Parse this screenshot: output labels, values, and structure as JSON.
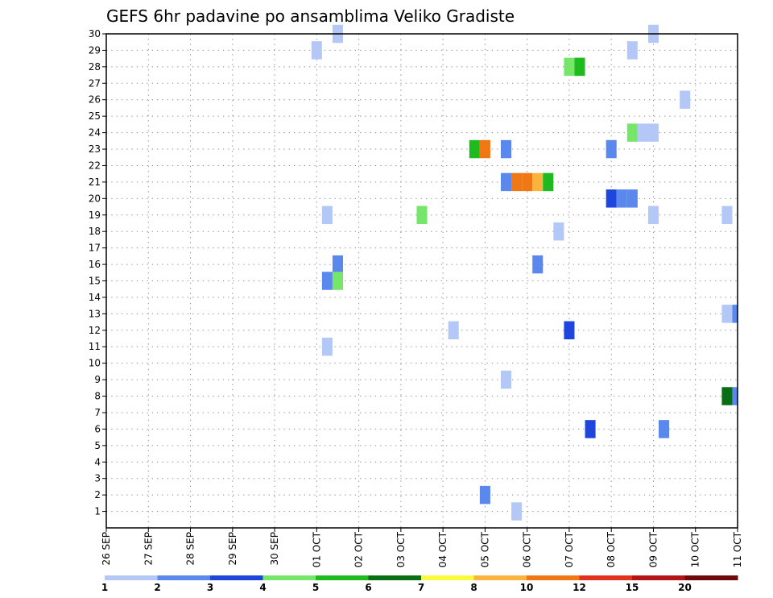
{
  "chart_data": {
    "type": "heatmap",
    "title": "GEFS 6hr padavine po ansamblima Veliko Gradiste",
    "x_tick_labels": [
      "26 SEP",
      "27 SEP",
      "28 SEP",
      "29 SEP",
      "30 SEP",
      "01 OCT",
      "02 OCT",
      "03 OCT",
      "04 OCT",
      "05 OCT",
      "06 OCT",
      "07 OCT",
      "08 OCT",
      "09 OCT",
      "10 OCT",
      "11 OCT"
    ],
    "y_tick_labels": [
      "1",
      "2",
      "3",
      "4",
      "5",
      "6",
      "7",
      "8",
      "9",
      "10",
      "11",
      "12",
      "13",
      "14",
      "15",
      "16",
      "17",
      "18",
      "19",
      "20",
      "21",
      "22",
      "23",
      "24",
      "25",
      "26",
      "27",
      "28",
      "29",
      "30"
    ],
    "ylim": [
      0,
      30
    ],
    "grid": true,
    "colorbar": {
      "levels": [
        "1",
        "2",
        "3",
        "4",
        "5",
        "6",
        "7",
        "8",
        "10",
        "12",
        "15",
        "20"
      ],
      "colors": [
        "#b4c8f8",
        "#5a88ec",
        "#1e46dc",
        "#76e66a",
        "#1eba1e",
        "#0a6e14",
        "#fafa3c",
        "#fab43c",
        "#f07814",
        "#e0321e",
        "#b41414",
        "#6e0a0a"
      ]
    },
    "cells": [
      {
        "x": "01 OCT 00Z",
        "member": 29,
        "color": "#b4c8f8"
      },
      {
        "x": "01 OCT 12Z",
        "member": 30,
        "color": "#b4c8f8"
      },
      {
        "x": "08 OCT 12Z",
        "member": 29,
        "color": "#b4c8f8"
      },
      {
        "x": "09 OCT 00Z",
        "member": 30,
        "color": "#b4c8f8"
      },
      {
        "x": "07 OCT 00Z",
        "member": 28,
        "color": "#76e66a"
      },
      {
        "x": "07 OCT 06Z",
        "member": 28,
        "color": "#1eba1e"
      },
      {
        "x": "09 OCT 18Z",
        "member": 26,
        "color": "#b4c8f8"
      },
      {
        "x": "08 OCT 12Z",
        "member": 24,
        "color": "#76e66a"
      },
      {
        "x": "08 OCT 18Z",
        "member": 24,
        "color": "#b4c8f8"
      },
      {
        "x": "09 OCT 00Z",
        "member": 24,
        "color": "#b4c8f8"
      },
      {
        "x": "04 OCT 18Z",
        "member": 23,
        "color": "#1eba1e"
      },
      {
        "x": "05 OCT 00Z",
        "member": 23,
        "color": "#f07814"
      },
      {
        "x": "05 OCT 12Z",
        "member": 23,
        "color": "#5a88ec"
      },
      {
        "x": "08 OCT 00Z",
        "member": 23,
        "color": "#5a88ec"
      },
      {
        "x": "05 OCT 12Z",
        "member": 21,
        "color": "#5a88ec"
      },
      {
        "x": "05 OCT 18Z",
        "member": 21,
        "color": "#f07814"
      },
      {
        "x": "06 OCT 00Z",
        "member": 21,
        "color": "#f07814"
      },
      {
        "x": "06 OCT 06Z",
        "member": 21,
        "color": "#fab43c"
      },
      {
        "x": "06 OCT 12Z",
        "member": 21,
        "color": "#1eba1e"
      },
      {
        "x": "08 OCT 00Z",
        "member": 20,
        "color": "#1e46dc"
      },
      {
        "x": "08 OCT 06Z",
        "member": 20,
        "color": "#5a88ec"
      },
      {
        "x": "08 OCT 12Z",
        "member": 20,
        "color": "#5a88ec"
      },
      {
        "x": "01 OCT 06Z",
        "member": 19,
        "color": "#b4c8f8"
      },
      {
        "x": "03 OCT 12Z",
        "member": 19,
        "color": "#76e66a"
      },
      {
        "x": "09 OCT 00Z",
        "member": 19,
        "color": "#b4c8f8"
      },
      {
        "x": "10 OCT 18Z",
        "member": 19,
        "color": "#b4c8f8"
      },
      {
        "x": "06 OCT 18Z",
        "member": 18,
        "color": "#b4c8f8"
      },
      {
        "x": "01 OCT 12Z",
        "member": 16,
        "color": "#5a88ec"
      },
      {
        "x": "06 OCT 06Z",
        "member": 16,
        "color": "#5a88ec"
      },
      {
        "x": "01 OCT 06Z",
        "member": 15,
        "color": "#5a88ec"
      },
      {
        "x": "01 OCT 12Z",
        "member": 15,
        "color": "#76e66a"
      },
      {
        "x": "10 OCT 18Z",
        "member": 13,
        "color": "#b4c8f8"
      },
      {
        "x": "11 OCT 00Z",
        "member": 13,
        "color": "#5a88ec"
      },
      {
        "x": "04 OCT 06Z",
        "member": 12,
        "color": "#b4c8f8"
      },
      {
        "x": "07 OCT 00Z",
        "member": 12,
        "color": "#1e46dc"
      },
      {
        "x": "01 OCT 06Z",
        "member": 11,
        "color": "#b4c8f8"
      },
      {
        "x": "05 OCT 12Z",
        "member": 9,
        "color": "#b4c8f8"
      },
      {
        "x": "10 OCT 18Z",
        "member": 8,
        "color": "#0a6e14"
      },
      {
        "x": "11 OCT 00Z",
        "member": 8,
        "color": "#5a88ec"
      },
      {
        "x": "07 OCT 12Z",
        "member": 6,
        "color": "#1e46dc"
      },
      {
        "x": "09 OCT 06Z",
        "member": 6,
        "color": "#5a88ec"
      },
      {
        "x": "05 OCT 00Z",
        "member": 2,
        "color": "#5a88ec"
      },
      {
        "x": "05 OCT 18Z",
        "member": 1,
        "color": "#b4c8f8"
      }
    ]
  }
}
